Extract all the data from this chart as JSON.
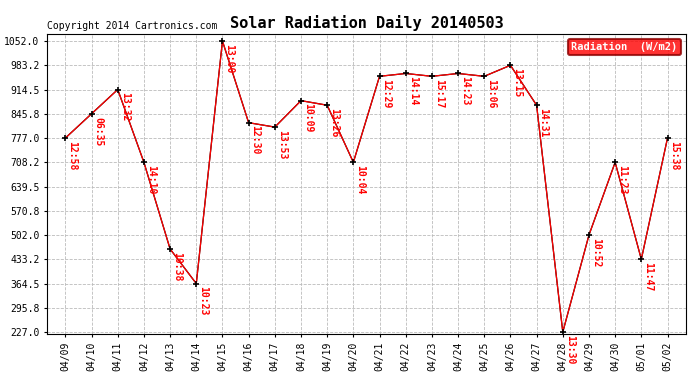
{
  "title": "Solar Radiation Daily 20140503",
  "copyright": "Copyright 2014 Cartronics.com",
  "legend_label": "Radiation  (W/m2)",
  "x_labels": [
    "04/09",
    "04/10",
    "04/11",
    "04/12",
    "04/13",
    "04/14",
    "04/15",
    "04/16",
    "04/17",
    "04/18",
    "04/19",
    "04/20",
    "04/21",
    "04/22",
    "04/23",
    "04/24",
    "04/25",
    "04/26",
    "04/27",
    "04/28",
    "04/29",
    "04/30",
    "05/01",
    "05/02"
  ],
  "y_values": [
    777.0,
    845.8,
    914.5,
    708.2,
    462.5,
    364.5,
    1052.0,
    820.5,
    808.0,
    883.0,
    870.0,
    708.2,
    952.0,
    960.0,
    952.0,
    960.0,
    952.0,
    983.2,
    870.0,
    227.0,
    502.0,
    708.2,
    433.2,
    777.0
  ],
  "point_labels": [
    "12:58",
    "06:35",
    "13:32",
    "14:10",
    "10:38",
    "10:23",
    "13:00",
    "12:30",
    "13:53",
    "10:09",
    "13:26",
    "10:04",
    "12:29",
    "14:14",
    "15:17",
    "14:23",
    "13:06",
    "13:15",
    "14:31",
    "13:30",
    "10:52",
    "11:23",
    "11:47",
    "15:38"
  ],
  "y_ticks": [
    227.0,
    295.8,
    364.5,
    433.2,
    502.0,
    570.8,
    639.5,
    708.2,
    777.0,
    845.8,
    914.5,
    983.2,
    1052.0
  ],
  "line_color": "red",
  "marker_color": "black",
  "background_color": "white",
  "grid_color": "#bbbbbb",
  "title_fontsize": 11,
  "copyright_fontsize": 7,
  "tick_fontsize": 7,
  "point_label_fontsize": 7
}
